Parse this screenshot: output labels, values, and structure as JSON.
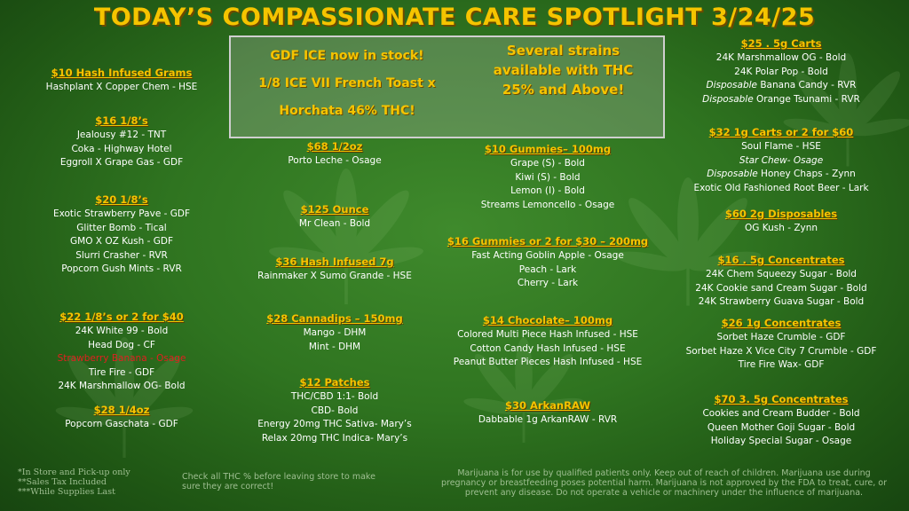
{
  "title": "TODAY’S COMPASSIONATE CARE SPOTLIGHT 3/24/25",
  "banner": {
    "left_lines": [
      "GDF ICE now in stock!",
      "1/8 ICE VII French Toast x",
      "Horchata  46% THC!"
    ],
    "right_lines": [
      "Several strains",
      "available with THC",
      "25% and Above!"
    ]
  },
  "colors": {
    "heading": "#f5c400",
    "text": "#ffffff",
    "highlight": "#e02020",
    "background": "#2f7420"
  },
  "columns": {
    "col1": [
      {
        "heading": "$10 Hash Infused Grams",
        "items": [
          {
            "text": "Hashplant X Copper Chem - HSE"
          }
        ]
      },
      {
        "heading": "$16 1/8’s",
        "items": [
          {
            "text": "Jealousy #12 - TNT"
          },
          {
            "text": "Coka - Highway Hotel"
          },
          {
            "text": "Eggroll X Grape Gas - GDF"
          }
        ]
      },
      {
        "heading": "$20 1/8’s",
        "items": [
          {
            "text": "Exotic Strawberry Pave - GDF"
          },
          {
            "text": "Glitter Bomb - Tical"
          },
          {
            "text": "GMO X OZ Kush - GDF"
          },
          {
            "text": "Slurri Crasher - RVR"
          },
          {
            "text": "Popcorn Gush Mints - RVR"
          }
        ]
      },
      {
        "heading": "$22 1/8’s or 2 for $40",
        "items": [
          {
            "text": "24K White 99 - Bold"
          },
          {
            "text": "Head Dog - CF"
          },
          {
            "text": "Strawberry Banana - Osage",
            "red": true
          },
          {
            "text": "Tire Fire - GDF"
          },
          {
            "text": "24K Marshmallow OG- Bold"
          }
        ]
      },
      {
        "heading": "$28 1/4oz",
        "items": [
          {
            "text": "Popcorn Gaschata - GDF"
          }
        ]
      }
    ],
    "col2": [
      {
        "heading": "$68 1/2oz",
        "items": [
          {
            "text": "Porto Leche - Osage"
          }
        ]
      },
      {
        "heading": "$125 Ounce",
        "items": [
          {
            "text": "Mr Clean - Bold"
          }
        ]
      },
      {
        "heading": "$36 Hash Infused 7g",
        "items": [
          {
            "text": "Rainmaker X Sumo Grande - HSE"
          }
        ]
      },
      {
        "heading": "$28 Cannadips – 150mg",
        "items": [
          {
            "text": "Mango - DHM"
          },
          {
            "text": "Mint - DHM"
          }
        ]
      },
      {
        "heading": "$12 Patches",
        "items": [
          {
            "text": "THC/CBD 1:1- Bold"
          },
          {
            "text": "CBD- Bold"
          },
          {
            "text": "Energy 20mg THC Sativa- Mary’s"
          },
          {
            "text": "Relax 20mg THC Indica- Mary’s"
          }
        ]
      }
    ],
    "col3": [
      {
        "heading": "$10 Gummies– 100mg",
        "items": [
          {
            "text": "Grape (S) - Bold"
          },
          {
            "text": "Kiwi (S) - Bold"
          },
          {
            "text": "Lemon (I) - Bold"
          },
          {
            "text": "Streams Lemoncello - Osage"
          }
        ]
      },
      {
        "heading": "$16 Gummies or 2 for $30 – 200mg",
        "items": [
          {
            "text": "Fast Acting Goblin Apple - Osage"
          },
          {
            "text": "Peach - Lark"
          },
          {
            "text": "Cherry - Lark"
          }
        ]
      },
      {
        "heading": "$14 Chocolate– 100mg",
        "items": [
          {
            "text": "Colored Multi Piece Hash Infused - HSE"
          },
          {
            "text": "Cotton Candy Hash Infused - HSE"
          },
          {
            "text": "Peanut Butter Pieces Hash Infused - HSE"
          }
        ]
      },
      {
        "heading": "$30 ArkanRAW",
        "items": [
          {
            "text": "Dabbable 1g ArkanRAW - RVR"
          }
        ]
      }
    ],
    "col4": [
      {
        "heading": "$25 . 5g Carts",
        "items": [
          {
            "text": "24K Marshmallow OG - Bold"
          },
          {
            "text": "24K Polar Pop - Bold"
          },
          {
            "prefix": "Disposable",
            "text": " Banana Candy - RVR"
          },
          {
            "prefix": "Disposable",
            "text": " Orange Tsunami - RVR"
          }
        ]
      },
      {
        "heading": "$32 1g Carts or 2 for $60",
        "items": [
          {
            "text": "Soul Flame - HSE"
          },
          {
            "prefix": "Star Chew- Osage",
            "text": ""
          },
          {
            "prefix": "Disposable",
            "text": " Honey Chaps - Zynn"
          },
          {
            "text": "Exotic Old Fashioned Root Beer - Lark"
          }
        ]
      },
      {
        "heading": "$60 2g Disposables",
        "items": [
          {
            "text": "OG Kush - Zynn"
          }
        ]
      },
      {
        "heading": "$16 . 5g Concentrates",
        "items": [
          {
            "text": "24K Chem Squeezy Sugar - Bold"
          },
          {
            "text": "24K Cookie sand Cream Sugar - Bold"
          },
          {
            "text": "24K Strawberry Guava Sugar - Bold"
          }
        ]
      },
      {
        "heading": "$26 1g Concentrates",
        "items": [
          {
            "text": "Sorbet Haze Crumble - GDF"
          },
          {
            "text": "Sorbet Haze X Vice City 7 Crumble - GDF"
          },
          {
            "text": "Tire Fire Wax- GDF"
          }
        ]
      },
      {
        "heading": "$70 3. 5g Concentrates",
        "items": [
          {
            "text": "Cookies and Cream Budder - Bold"
          },
          {
            "text": "Queen Mother Goji Sugar - Bold"
          },
          {
            "text": "Holiday Special Sugar - Osage"
          }
        ]
      }
    ]
  },
  "footer": {
    "left": [
      "*In Store and Pick-up only",
      "**Sales Tax Included",
      "***While Supplies Last"
    ],
    "middle": [
      "Check all THC % before leaving store to make",
      "sure they are correct!"
    ],
    "right": [
      "Marijuana is for use by qualified patients only. Keep out of reach of children. Marijuana use during",
      "pregnancy or breastfeeding poses potential harm. Marijuana is not approved by the FDA to treat, cure, or",
      "prevent any disease. Do not operate a vehicle or machinery under the influence of marijuana."
    ]
  }
}
